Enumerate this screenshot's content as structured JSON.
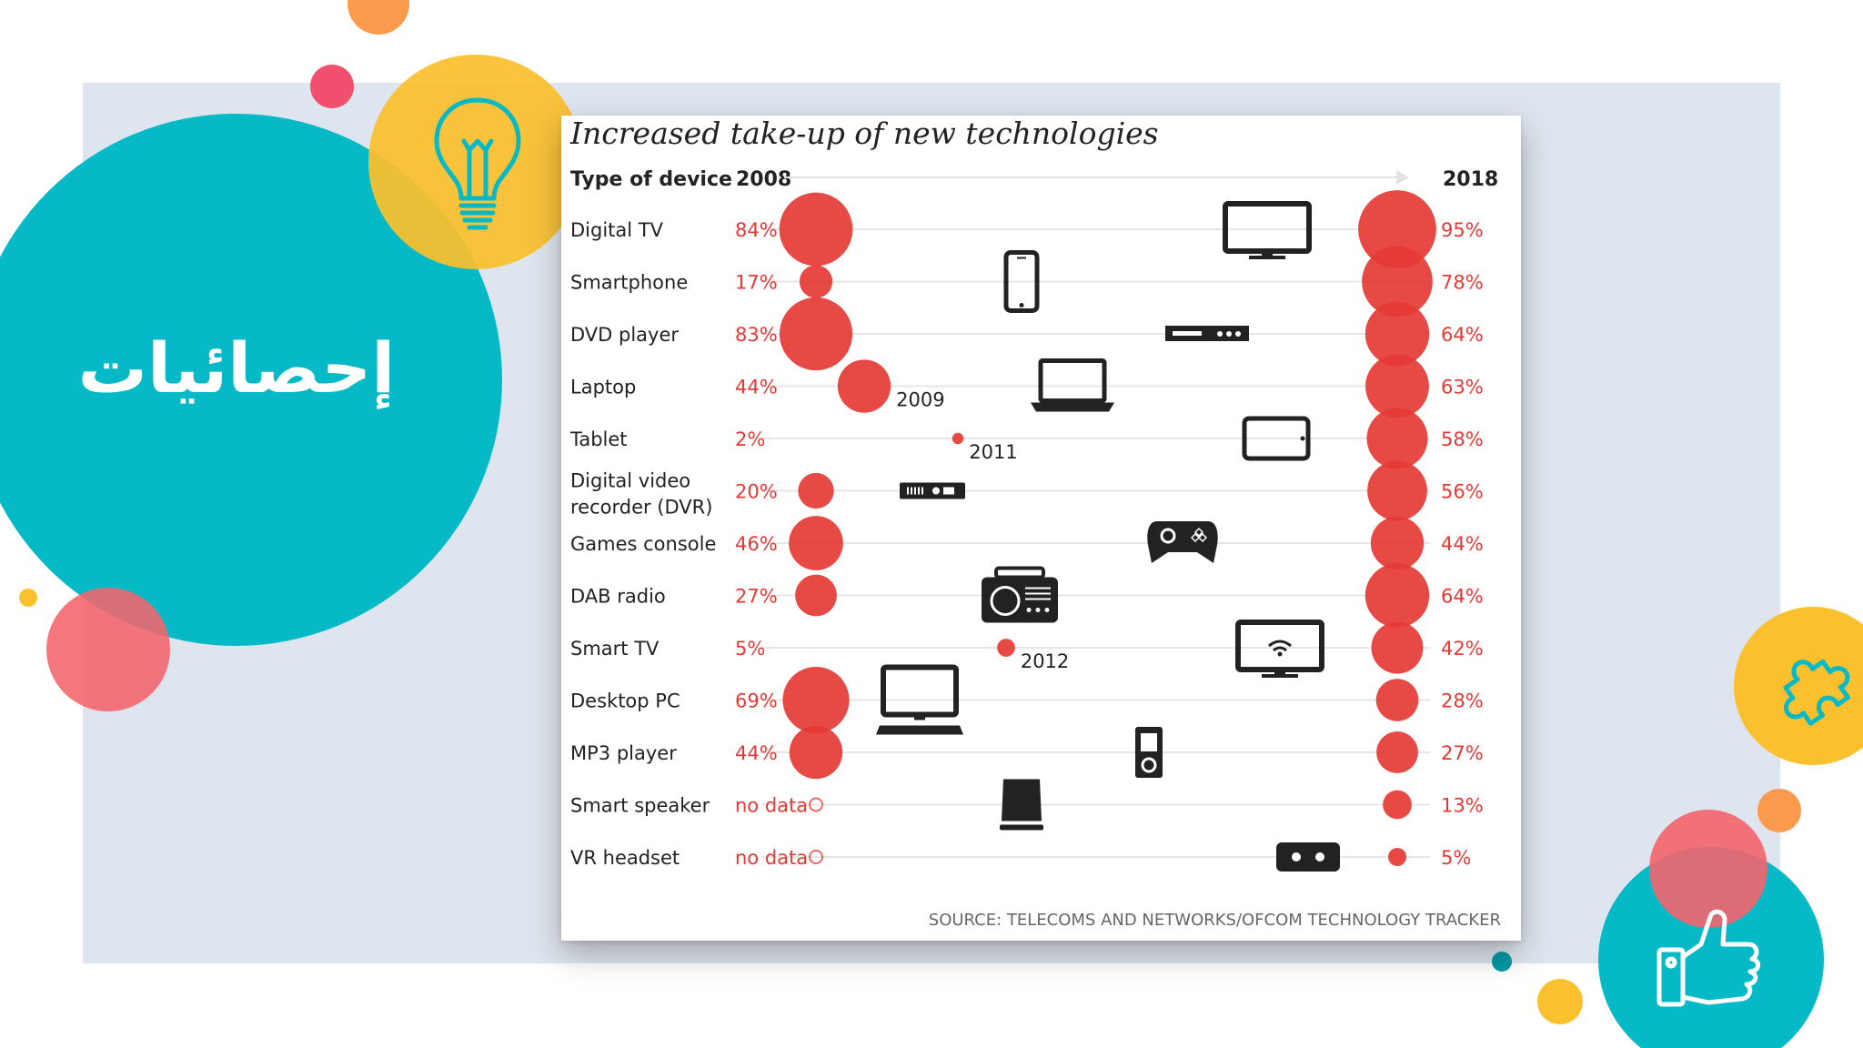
{
  "slide": {
    "title": "إحصائيات",
    "colors": {
      "teal": "#06b9c6",
      "yellow": "#fbc02d",
      "coral": "#f4646c",
      "orange": "#fc9a4e",
      "panel": "#dfe5ee"
    },
    "icons": [
      "lightbulb-icon",
      "puzzle-icon",
      "thumbs-up-icon"
    ]
  },
  "chart_data": {
    "type": "scatter",
    "title": "Increased take-up of new technologies",
    "column_header": "Type of device",
    "start_year": "2008",
    "end_year": "2018",
    "source": "SOURCE: TELECOMS AND NETWORKS/OFCOM TECHNOLOGY TRACKER",
    "accent_color": "#e53935",
    "rows": [
      {
        "device": "Digital TV",
        "v2008": 84,
        "label2008": "84%",
        "v2018": 95,
        "label2018": "95%",
        "icon": "tv-icon"
      },
      {
        "device": "Smartphone",
        "v2008": 17,
        "label2008": "17%",
        "v2018": 78,
        "label2018": "78%",
        "icon": "smartphone-icon"
      },
      {
        "device": "DVD player",
        "v2008": 83,
        "label2008": "83%",
        "v2018": 64,
        "label2018": "64%",
        "icon": "dvd-player-icon"
      },
      {
        "device": "Laptop",
        "v2008": 44,
        "label2008": "44%",
        "start_year": "2009",
        "v2018": 63,
        "label2018": "63%",
        "icon": "laptop-icon"
      },
      {
        "device": "Tablet",
        "v2008": 2,
        "label2008": "2%",
        "start_year": "2011",
        "v2018": 58,
        "label2018": "58%",
        "icon": "tablet-icon"
      },
      {
        "device": "Digital video recorder (DVR)",
        "v2008": 20,
        "label2008": "20%",
        "v2018": 56,
        "label2018": "56%",
        "icon": "dvr-icon"
      },
      {
        "device": "Games console",
        "v2008": 46,
        "label2008": "46%",
        "v2018": 44,
        "label2018": "44%",
        "icon": "gamepad-icon"
      },
      {
        "device": "DAB radio",
        "v2008": 27,
        "label2008": "27%",
        "v2018": 64,
        "label2018": "64%",
        "icon": "radio-icon"
      },
      {
        "device": "Smart TV",
        "v2008": 5,
        "label2008": "5%",
        "start_year": "2012",
        "v2018": 42,
        "label2018": "42%",
        "icon": "smart-tv-icon"
      },
      {
        "device": "Desktop PC",
        "v2008": 69,
        "label2008": "69%",
        "v2018": 28,
        "label2018": "28%",
        "icon": "desktop-pc-icon"
      },
      {
        "device": "MP3 player",
        "v2008": 44,
        "label2008": "44%",
        "v2018": 27,
        "label2018": "27%",
        "icon": "mp3-player-icon"
      },
      {
        "device": "Smart speaker",
        "v2008": null,
        "label2008": "no data",
        "v2018": 13,
        "label2018": "13%",
        "icon": "smart-speaker-icon"
      },
      {
        "device": "VR headset",
        "v2008": null,
        "label2008": "no data",
        "v2018": 5,
        "label2018": "5%",
        "icon": "vr-headset-icon"
      }
    ]
  }
}
